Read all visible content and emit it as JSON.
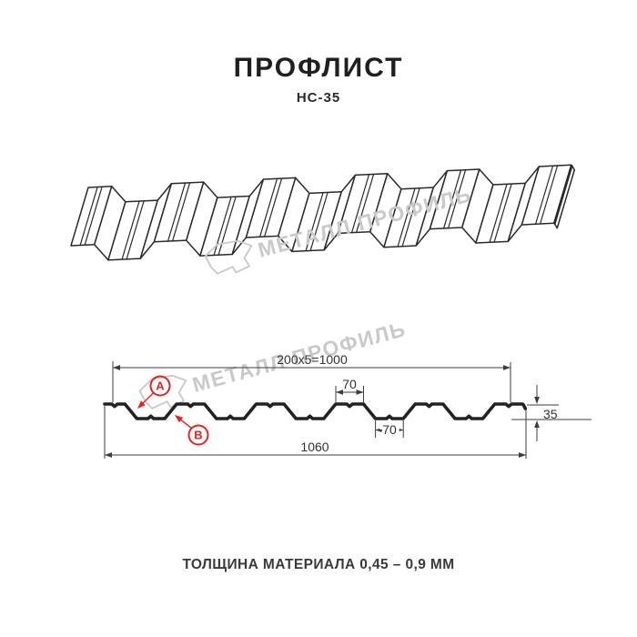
{
  "header": {
    "title": "ПРОФЛИСТ",
    "model": "НС-35"
  },
  "watermark": {
    "brand": "МЕТАЛЛ ПРОФИЛЬ"
  },
  "section": {
    "dim_working_width": "200x5=1000",
    "dim_total_width": "1060",
    "dim_crest_width": "70",
    "dim_valley_width": "70",
    "dim_height": "35",
    "marker_a": "A",
    "marker_b": "B"
  },
  "footer": {
    "text": "ТОЛЩИНА МАТЕРИАЛА 0,45 – 0,9 ММ"
  },
  "colors": {
    "accent_red": "#e8231f",
    "profile_line": "#222222",
    "dim_line": "#3d3d3d",
    "watermark_gray": "#c9c9c9"
  }
}
